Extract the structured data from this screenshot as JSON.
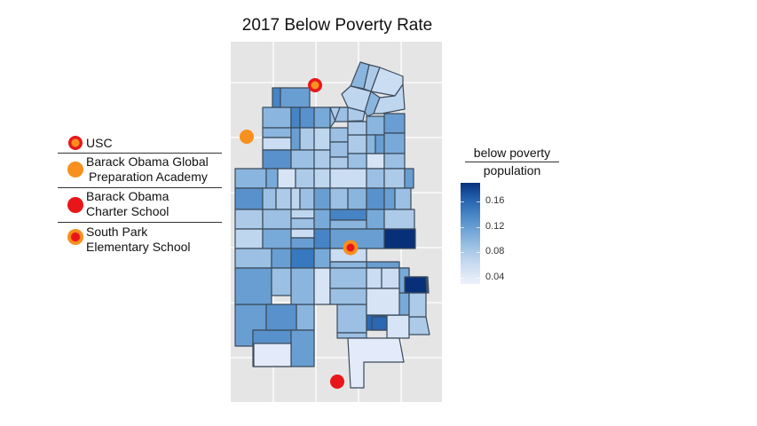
{
  "chart_data": {
    "type": "choropleth-map",
    "title": "2017 Below Poverty Rate",
    "colorbar": {
      "title_line1": "below poverty",
      "title_line2": "population",
      "ticks": [
        "0.16",
        "0.12",
        "0.08",
        "0.04"
      ],
      "tick_values": [
        0.16,
        0.12,
        0.08,
        0.04
      ],
      "range": [
        0.03,
        0.19
      ],
      "low_color": "#eef0fb",
      "high_color": "#08306b"
    },
    "grid": true,
    "background": "#e5e5e5",
    "tract_border_color": "#3b4a5a",
    "tract_rates": {
      "t1": 0.14,
      "t2": 0.12,
      "t3": 0.1,
      "t4": 0.14,
      "t5": 0.13,
      "t6": 0.11,
      "t7": 0.09,
      "t8": 0.1,
      "t9": 0.06,
      "t10": 0.12,
      "t11": 0.08,
      "t12": 0.07,
      "t13": 0.09,
      "t14": 0.13,
      "t15": 0.09,
      "t16": 0.08,
      "t17": 0.09,
      "t18": 0.08,
      "t19": 0.05,
      "t20": 0.09,
      "t21": 0.08,
      "t22": 0.1,
      "t23": 0.08,
      "t24": 0.07,
      "t25": 0.06,
      "t26": 0.08,
      "t27": 0.1,
      "t28": 0.07,
      "t29": 0.09,
      "t30": 0.08,
      "t31": 0.1,
      "t32": 0.12,
      "t33": 0.1,
      "t34": 0.12,
      "t35": 0.11,
      "t36": 0.09,
      "t37": 0.1,
      "t38": 0.11,
      "t39": 0.05,
      "t40": 0.08,
      "t41": 0.07,
      "t42": 0.06,
      "t43": 0.09,
      "t44": 0.08,
      "t45": 0.12,
      "t46": 0.13,
      "t47": 0.09,
      "t48": 0.08,
      "t49": 0.07,
      "t50": 0.09,
      "t51": 0.12,
      "t52": 0.09,
      "t53": 0.1,
      "t54": 0.13,
      "t55": 0.12,
      "t56": 0.09,
      "t57": 0.08,
      "t58": 0.09,
      "t59": 0.07,
      "t60": 0.09,
      "t61": 0.11,
      "t62": 0.14,
      "t63": 0.1,
      "t64": 0.11,
      "t65": 0.08,
      "t66": 0.07,
      "t67": 0.11,
      "t68": 0.06,
      "t69": 0.12,
      "t70": 0.14,
      "t71": 0.12,
      "t72": 0.19,
      "t73": 0.09,
      "t74": 0.12,
      "t75": 0.15,
      "t76": 0.11,
      "t77": 0.06,
      "t78": 0.12,
      "t79": 0.1,
      "t80": 0.12,
      "t81": 0.09,
      "t82": 0.1,
      "t83": 0.05,
      "t84": 0.09,
      "t85": 0.16,
      "t86": 0.06,
      "t87": 0.06,
      "t88": 0.11,
      "t89": 0.09,
      "t90": 0.05,
      "t91": 0.08,
      "t92": 0.13,
      "t93": 0.04,
      "t94": 0.12,
      "t95": 0.04
    },
    "points": [
      {
        "name": "USC",
        "style": "red-ring-orange-center"
      },
      {
        "name": "Barack Obama Global Preparation Academy",
        "style": "orange"
      },
      {
        "name": "Barack Obama Charter School",
        "style": "red"
      },
      {
        "name": "South Park Elementary School",
        "style": "orange-ring-red-center"
      }
    ]
  },
  "legend": {
    "items": [
      {
        "line1": "USC",
        "line2": ""
      },
      {
        "line1": "Barack Obama Global",
        "line2": "Preparation Academy"
      },
      {
        "line1": "Barack Obama",
        "line2": "Charter School"
      },
      {
        "line1": "South Park",
        "line2": "Elementary School"
      }
    ]
  },
  "colors": {
    "red": "#e8161b",
    "orange": "#f7901e"
  }
}
